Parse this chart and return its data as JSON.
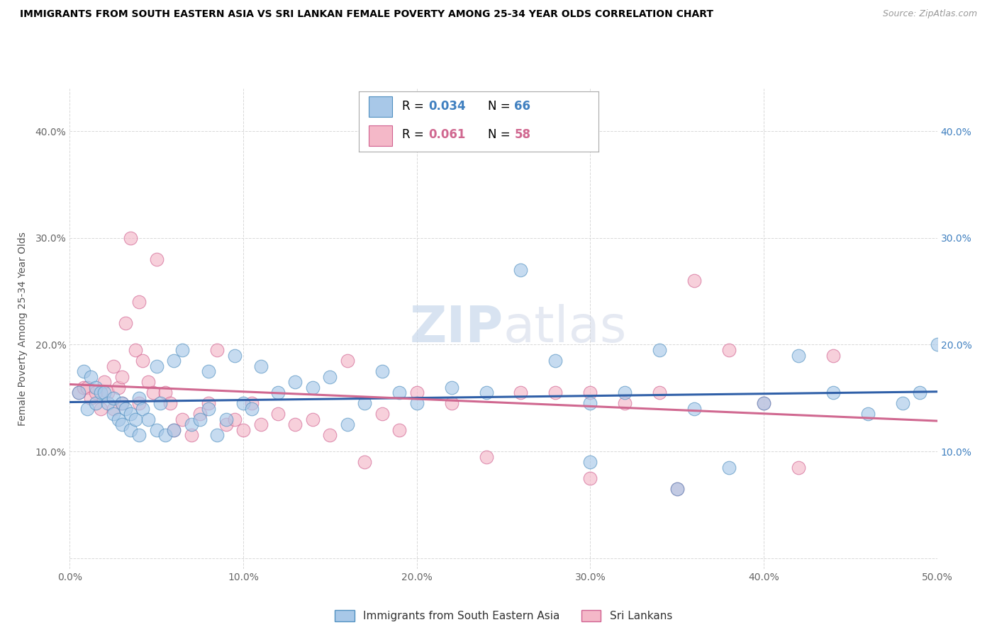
{
  "title": "IMMIGRANTS FROM SOUTH EASTERN ASIA VS SRI LANKAN FEMALE POVERTY AMONG 25-34 YEAR OLDS CORRELATION CHART",
  "source": "Source: ZipAtlas.com",
  "ylabel": "Female Poverty Among 25-34 Year Olds",
  "xlim": [
    0.0,
    0.5
  ],
  "ylim": [
    -0.01,
    0.44
  ],
  "xticks": [
    0.0,
    0.1,
    0.2,
    0.3,
    0.4,
    0.5
  ],
  "yticks": [
    0.0,
    0.1,
    0.2,
    0.3,
    0.4
  ],
  "xticklabels": [
    "0.0%",
    "10.0%",
    "20.0%",
    "30.0%",
    "40.0%",
    "50.0%"
  ],
  "yticklabels_left": [
    "",
    "10.0%",
    "20.0%",
    "30.0%",
    "40.0%"
  ],
  "yticklabels_right": [
    "",
    "10.0%",
    "20.0%",
    "30.0%",
    "40.0%"
  ],
  "legend_labels": [
    "Immigrants from South Eastern Asia",
    "Sri Lankans"
  ],
  "blue_R": "0.034",
  "blue_N": "66",
  "pink_R": "0.061",
  "pink_N": "58",
  "blue_color": "#a8c8e8",
  "pink_color": "#f4b8c8",
  "blue_edge_color": "#5090c0",
  "pink_edge_color": "#d06090",
  "blue_line_color": "#3060a8",
  "pink_line_color": "#d06890",
  "right_axis_color": "#4080c0",
  "blue_scatter": [
    [
      0.005,
      0.155
    ],
    [
      0.008,
      0.175
    ],
    [
      0.01,
      0.14
    ],
    [
      0.012,
      0.17
    ],
    [
      0.015,
      0.16
    ],
    [
      0.015,
      0.145
    ],
    [
      0.018,
      0.155
    ],
    [
      0.02,
      0.155
    ],
    [
      0.022,
      0.145
    ],
    [
      0.025,
      0.15
    ],
    [
      0.025,
      0.135
    ],
    [
      0.028,
      0.13
    ],
    [
      0.03,
      0.145
    ],
    [
      0.03,
      0.125
    ],
    [
      0.032,
      0.14
    ],
    [
      0.035,
      0.12
    ],
    [
      0.035,
      0.135
    ],
    [
      0.038,
      0.13
    ],
    [
      0.04,
      0.15
    ],
    [
      0.04,
      0.115
    ],
    [
      0.042,
      0.14
    ],
    [
      0.045,
      0.13
    ],
    [
      0.05,
      0.18
    ],
    [
      0.05,
      0.12
    ],
    [
      0.052,
      0.145
    ],
    [
      0.055,
      0.115
    ],
    [
      0.06,
      0.185
    ],
    [
      0.06,
      0.12
    ],
    [
      0.065,
      0.195
    ],
    [
      0.07,
      0.125
    ],
    [
      0.075,
      0.13
    ],
    [
      0.08,
      0.175
    ],
    [
      0.08,
      0.14
    ],
    [
      0.085,
      0.115
    ],
    [
      0.09,
      0.13
    ],
    [
      0.095,
      0.19
    ],
    [
      0.1,
      0.145
    ],
    [
      0.105,
      0.14
    ],
    [
      0.11,
      0.18
    ],
    [
      0.12,
      0.155
    ],
    [
      0.13,
      0.165
    ],
    [
      0.14,
      0.16
    ],
    [
      0.15,
      0.17
    ],
    [
      0.16,
      0.125
    ],
    [
      0.17,
      0.145
    ],
    [
      0.18,
      0.175
    ],
    [
      0.19,
      0.155
    ],
    [
      0.2,
      0.145
    ],
    [
      0.22,
      0.16
    ],
    [
      0.24,
      0.155
    ],
    [
      0.26,
      0.27
    ],
    [
      0.28,
      0.185
    ],
    [
      0.3,
      0.145
    ],
    [
      0.3,
      0.09
    ],
    [
      0.32,
      0.155
    ],
    [
      0.34,
      0.195
    ],
    [
      0.35,
      0.065
    ],
    [
      0.36,
      0.14
    ],
    [
      0.38,
      0.085
    ],
    [
      0.4,
      0.145
    ],
    [
      0.42,
      0.19
    ],
    [
      0.44,
      0.155
    ],
    [
      0.46,
      0.135
    ],
    [
      0.48,
      0.145
    ],
    [
      0.49,
      0.155
    ],
    [
      0.5,
      0.2
    ]
  ],
  "pink_scatter": [
    [
      0.005,
      0.155
    ],
    [
      0.008,
      0.16
    ],
    [
      0.01,
      0.16
    ],
    [
      0.012,
      0.15
    ],
    [
      0.015,
      0.155
    ],
    [
      0.018,
      0.14
    ],
    [
      0.02,
      0.165
    ],
    [
      0.022,
      0.155
    ],
    [
      0.025,
      0.14
    ],
    [
      0.025,
      0.18
    ],
    [
      0.028,
      0.16
    ],
    [
      0.03,
      0.17
    ],
    [
      0.03,
      0.145
    ],
    [
      0.032,
      0.22
    ],
    [
      0.035,
      0.3
    ],
    [
      0.038,
      0.195
    ],
    [
      0.04,
      0.145
    ],
    [
      0.04,
      0.24
    ],
    [
      0.042,
      0.185
    ],
    [
      0.045,
      0.165
    ],
    [
      0.048,
      0.155
    ],
    [
      0.05,
      0.28
    ],
    [
      0.055,
      0.155
    ],
    [
      0.058,
      0.145
    ],
    [
      0.06,
      0.12
    ],
    [
      0.065,
      0.13
    ],
    [
      0.07,
      0.115
    ],
    [
      0.075,
      0.135
    ],
    [
      0.08,
      0.145
    ],
    [
      0.085,
      0.195
    ],
    [
      0.09,
      0.125
    ],
    [
      0.095,
      0.13
    ],
    [
      0.1,
      0.12
    ],
    [
      0.105,
      0.145
    ],
    [
      0.11,
      0.125
    ],
    [
      0.12,
      0.135
    ],
    [
      0.13,
      0.125
    ],
    [
      0.14,
      0.13
    ],
    [
      0.15,
      0.115
    ],
    [
      0.16,
      0.185
    ],
    [
      0.17,
      0.09
    ],
    [
      0.18,
      0.135
    ],
    [
      0.19,
      0.12
    ],
    [
      0.2,
      0.155
    ],
    [
      0.22,
      0.145
    ],
    [
      0.24,
      0.095
    ],
    [
      0.26,
      0.155
    ],
    [
      0.28,
      0.155
    ],
    [
      0.3,
      0.075
    ],
    [
      0.3,
      0.155
    ],
    [
      0.32,
      0.145
    ],
    [
      0.34,
      0.155
    ],
    [
      0.35,
      0.065
    ],
    [
      0.36,
      0.26
    ],
    [
      0.38,
      0.195
    ],
    [
      0.4,
      0.145
    ],
    [
      0.42,
      0.085
    ],
    [
      0.44,
      0.19
    ]
  ],
  "watermark": "ZIPatlas",
  "background_color": "#ffffff",
  "grid_color": "#d8d8d8"
}
